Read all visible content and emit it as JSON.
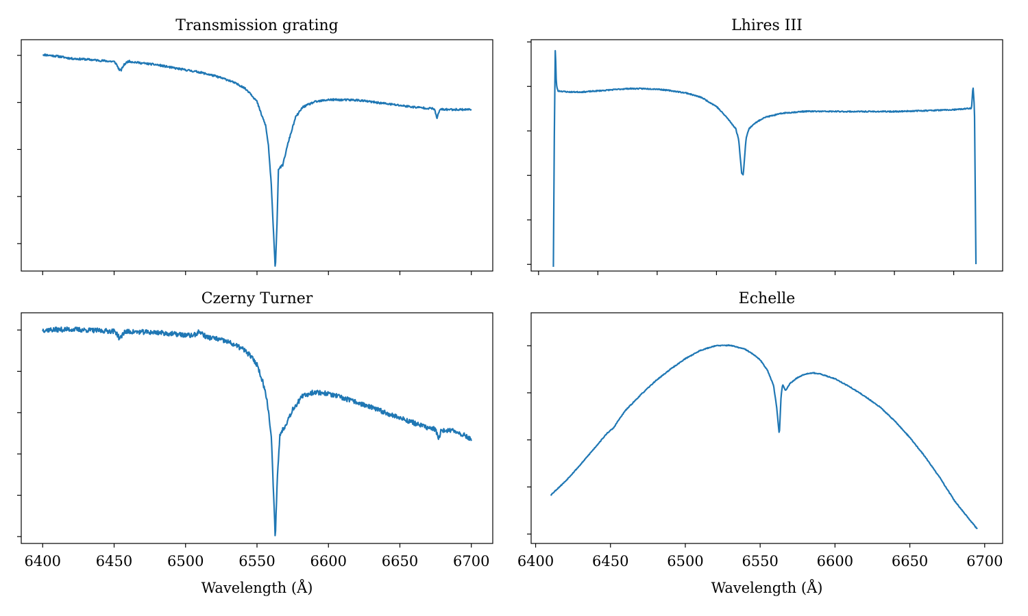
{
  "chart_data": [
    {
      "type": "line",
      "title": "Transmission grating",
      "xlabel": "",
      "xlim": [
        6385,
        6715
      ],
      "ylim": [
        0.48,
        1.07
      ],
      "x_tick_values": [
        6400,
        6450,
        6500,
        6550,
        6600,
        6650,
        6700
      ],
      "x_tick_labels_shown": false,
      "y_tick_values": [
        0.55,
        0.67,
        0.79,
        0.91,
        1.03
      ],
      "grid": false,
      "series_color": "#1f77b4",
      "anchors": [
        [
          6400,
          1.032
        ],
        [
          6410,
          1.028
        ],
        [
          6420,
          1.022
        ],
        [
          6430,
          1.02
        ],
        [
          6440,
          1.017
        ],
        [
          6450,
          1.014
        ],
        [
          6455,
          1.002
        ],
        [
          6460,
          1.015
        ],
        [
          6470,
          1.01
        ],
        [
          6480,
          1.006
        ],
        [
          6490,
          0.999
        ],
        [
          6500,
          0.993
        ],
        [
          6510,
          0.987
        ],
        [
          6520,
          0.978
        ],
        [
          6530,
          0.967
        ],
        [
          6540,
          0.95
        ],
        [
          6545,
          0.935
        ],
        [
          6550,
          0.912
        ],
        [
          6553,
          0.88
        ],
        [
          6556,
          0.852
        ],
        [
          6558,
          0.8
        ],
        [
          6560,
          0.7
        ],
        [
          6561,
          0.62
        ],
        [
          6562.8,
          0.485
        ],
        [
          6564,
          0.6
        ],
        [
          6565,
          0.74
        ],
        [
          6568,
          0.75
        ],
        [
          6572,
          0.81
        ],
        [
          6577,
          0.872
        ],
        [
          6582,
          0.898
        ],
        [
          6590,
          0.911
        ],
        [
          6600,
          0.917
        ],
        [
          6620,
          0.916
        ],
        [
          6640,
          0.907
        ],
        [
          6660,
          0.898
        ],
        [
          6674,
          0.894
        ],
        [
          6676,
          0.87
        ],
        [
          6678,
          0.892
        ],
        [
          6690,
          0.892
        ],
        [
          6700,
          0.892
        ]
      ],
      "lines": [
        {
          "center": 6454,
          "depth": 0.012,
          "width": 2
        }
      ],
      "noise": 0.0025,
      "seed": 11
    },
    {
      "type": "line",
      "title": "Lhires III",
      "xlabel": "",
      "xlim": [
        6395,
        6713
      ],
      "ylim": [
        0.02,
        1.06
      ],
      "x_tick_values": [
        6400,
        6440,
        6480,
        6520,
        6560,
        6600,
        6640,
        6680
      ],
      "x_tick_labels_shown": false,
      "y_tick_values": [
        0.05,
        0.25,
        0.45,
        0.65,
        0.85,
        1.05
      ],
      "grid": false,
      "series_color": "#1f77b4",
      "anchors": [
        [
          6410,
          0.04
        ],
        [
          6410.6,
          0.6
        ],
        [
          6411.3,
          1.03
        ],
        [
          6412,
          0.86
        ],
        [
          6413,
          0.83
        ],
        [
          6420,
          0.825
        ],
        [
          6430,
          0.825
        ],
        [
          6440,
          0.83
        ],
        [
          6450,
          0.835
        ],
        [
          6460,
          0.84
        ],
        [
          6470,
          0.84
        ],
        [
          6480,
          0.838
        ],
        [
          6490,
          0.83
        ],
        [
          6500,
          0.82
        ],
        [
          6510,
          0.8
        ],
        [
          6520,
          0.76
        ],
        [
          6527,
          0.71
        ],
        [
          6533,
          0.66
        ],
        [
          6535,
          0.61
        ],
        [
          6537,
          0.46
        ],
        [
          6538,
          0.45
        ],
        [
          6540,
          0.62
        ],
        [
          6542,
          0.66
        ],
        [
          6545,
          0.68
        ],
        [
          6552,
          0.71
        ],
        [
          6565,
          0.73
        ],
        [
          6580,
          0.738
        ],
        [
          6610,
          0.737
        ],
        [
          6640,
          0.737
        ],
        [
          6660,
          0.741
        ],
        [
          6680,
          0.745
        ],
        [
          6692,
          0.752
        ],
        [
          6693,
          0.85
        ],
        [
          6694,
          0.75
        ],
        [
          6695,
          0.05
        ]
      ],
      "lines": [],
      "noise": 0.0025,
      "seed": 23
    },
    {
      "type": "line",
      "title": "Czerny Turner",
      "xlabel": "Wavelength (Å)",
      "xlim": [
        6385,
        6715
      ],
      "ylim": [
        0.39,
        1.06
      ],
      "x_tick_values": [
        6400,
        6450,
        6500,
        6550,
        6600,
        6650,
        6700
      ],
      "x_tick_labels": [
        "6400",
        "6450",
        "6500",
        "6550",
        "6600",
        "6650",
        "6700"
      ],
      "y_tick_values": [
        0.41,
        0.53,
        0.65,
        0.77,
        0.89,
        1.01
      ],
      "grid": false,
      "series_color": "#1f77b4",
      "anchors": [
        [
          6400,
          1.01
        ],
        [
          6420,
          1.012
        ],
        [
          6440,
          1.008
        ],
        [
          6460,
          1.005
        ],
        [
          6480,
          1.003
        ],
        [
          6500,
          0.995
        ],
        [
          6510,
          0.992
        ],
        [
          6520,
          0.986
        ],
        [
          6530,
          0.975
        ],
        [
          6540,
          0.955
        ],
        [
          6545,
          0.937
        ],
        [
          6550,
          0.91
        ],
        [
          6554,
          0.86
        ],
        [
          6557,
          0.81
        ],
        [
          6560,
          0.7
        ],
        [
          6562.8,
          0.405
        ],
        [
          6564,
          0.56
        ],
        [
          6566,
          0.705
        ],
        [
          6570,
          0.735
        ],
        [
          6575,
          0.78
        ],
        [
          6582,
          0.818
        ],
        [
          6590,
          0.83
        ],
        [
          6600,
          0.825
        ],
        [
          6620,
          0.8
        ],
        [
          6640,
          0.77
        ],
        [
          6660,
          0.74
        ],
        [
          6670,
          0.725
        ],
        [
          6675,
          0.722
        ],
        [
          6677,
          0.69
        ],
        [
          6679,
          0.72
        ],
        [
          6690,
          0.715
        ],
        [
          6700,
          0.693
        ]
      ],
      "lines": [
        {
          "center": 6454,
          "depth": 0.02,
          "width": 2
        },
        {
          "center": 6510,
          "depth": -0.012,
          "width": 3
        }
      ],
      "noise": 0.007,
      "seed": 37
    },
    {
      "type": "line",
      "title": "Echelle",
      "xlabel": "Wavelength (Å)",
      "xlim": [
        6397,
        6712
      ],
      "ylim": [
        0.01,
        0.99
      ],
      "x_tick_values": [
        6400,
        6450,
        6500,
        6550,
        6600,
        6650,
        6700
      ],
      "x_tick_labels": [
        "6400",
        "6450",
        "6500",
        "6550",
        "6600",
        "6650",
        "6700"
      ],
      "y_tick_values": [
        0.05,
        0.25,
        0.45,
        0.65,
        0.85
      ],
      "grid": false,
      "series_color": "#1f77b4",
      "anchors": [
        [
          6410,
          0.215
        ],
        [
          6420,
          0.275
        ],
        [
          6430,
          0.345
        ],
        [
          6440,
          0.42
        ],
        [
          6448,
          0.48
        ],
        [
          6452,
          0.5
        ],
        [
          6455,
          0.53
        ],
        [
          6460,
          0.575
        ],
        [
          6470,
          0.64
        ],
        [
          6480,
          0.7
        ],
        [
          6490,
          0.75
        ],
        [
          6500,
          0.795
        ],
        [
          6510,
          0.83
        ],
        [
          6520,
          0.85
        ],
        [
          6530,
          0.852
        ],
        [
          6540,
          0.835
        ],
        [
          6545,
          0.815
        ],
        [
          6550,
          0.79
        ],
        [
          6555,
          0.745
        ],
        [
          6559,
          0.68
        ],
        [
          6561,
          0.59
        ],
        [
          6562.8,
          0.47
        ],
        [
          6564,
          0.64
        ],
        [
          6565,
          0.685
        ],
        [
          6567,
          0.66
        ],
        [
          6570,
          0.69
        ],
        [
          6575,
          0.715
        ],
        [
          6580,
          0.73
        ],
        [
          6585,
          0.735
        ],
        [
          6590,
          0.73
        ],
        [
          6600,
          0.71
        ],
        [
          6610,
          0.675
        ],
        [
          6620,
          0.635
        ],
        [
          6630,
          0.59
        ],
        [
          6640,
          0.53
        ],
        [
          6650,
          0.46
        ],
        [
          6660,
          0.38
        ],
        [
          6670,
          0.29
        ],
        [
          6680,
          0.19
        ],
        [
          6690,
          0.11
        ],
        [
          6695,
          0.072
        ]
      ],
      "lines": [],
      "noise": 0.0018,
      "seed": 53
    }
  ]
}
